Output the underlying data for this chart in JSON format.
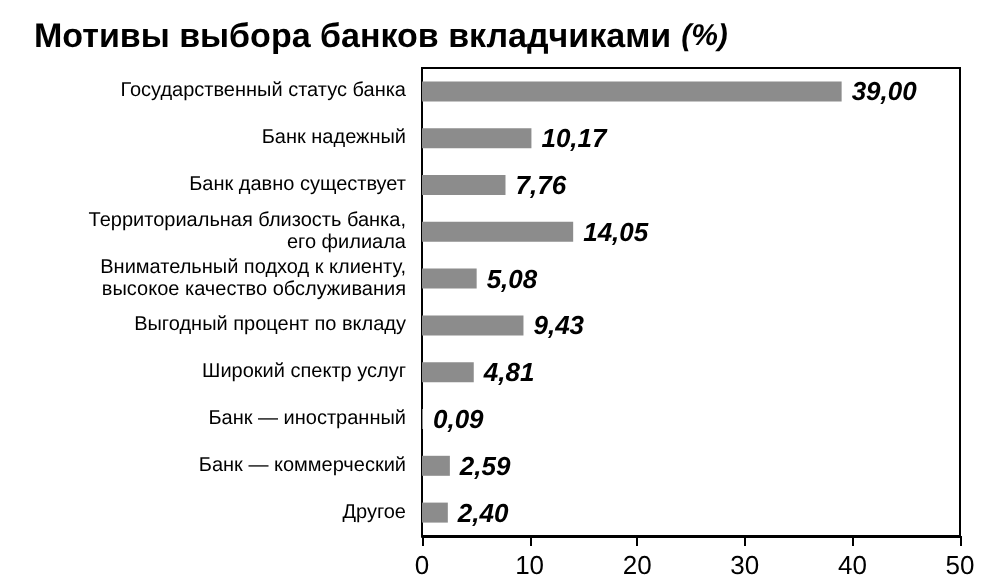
{
  "chart_data": {
    "type": "bar",
    "orientation": "horizontal",
    "title": "Мотивы выбора банков вкладчиками",
    "subtitle": "(%)",
    "categories": [
      "Государственный статус банка",
      "Банк надежный",
      "Банк давно существует",
      "Территориальная близость банка, его филиала",
      "Внимательный подход к клиенту, высокое качество обслуживания",
      "Выгодный процент по вкладу",
      "Широкий спектр услуг",
      "Банк — иностранный",
      "Банк — коммерческий",
      "Другое"
    ],
    "values": [
      39.0,
      10.17,
      7.76,
      14.05,
      5.08,
      9.43,
      4.81,
      0.09,
      2.59,
      2.4
    ],
    "value_labels": [
      "39,00",
      "10,17",
      "7,76",
      "14,05",
      "5,08",
      "9,43",
      "4,81",
      "0,09",
      "2,59",
      "2,40"
    ],
    "color": "#8c8c8c",
    "xlim": [
      0,
      50
    ],
    "xticks": [
      0,
      10,
      20,
      30,
      40,
      50
    ],
    "grid": false
  }
}
